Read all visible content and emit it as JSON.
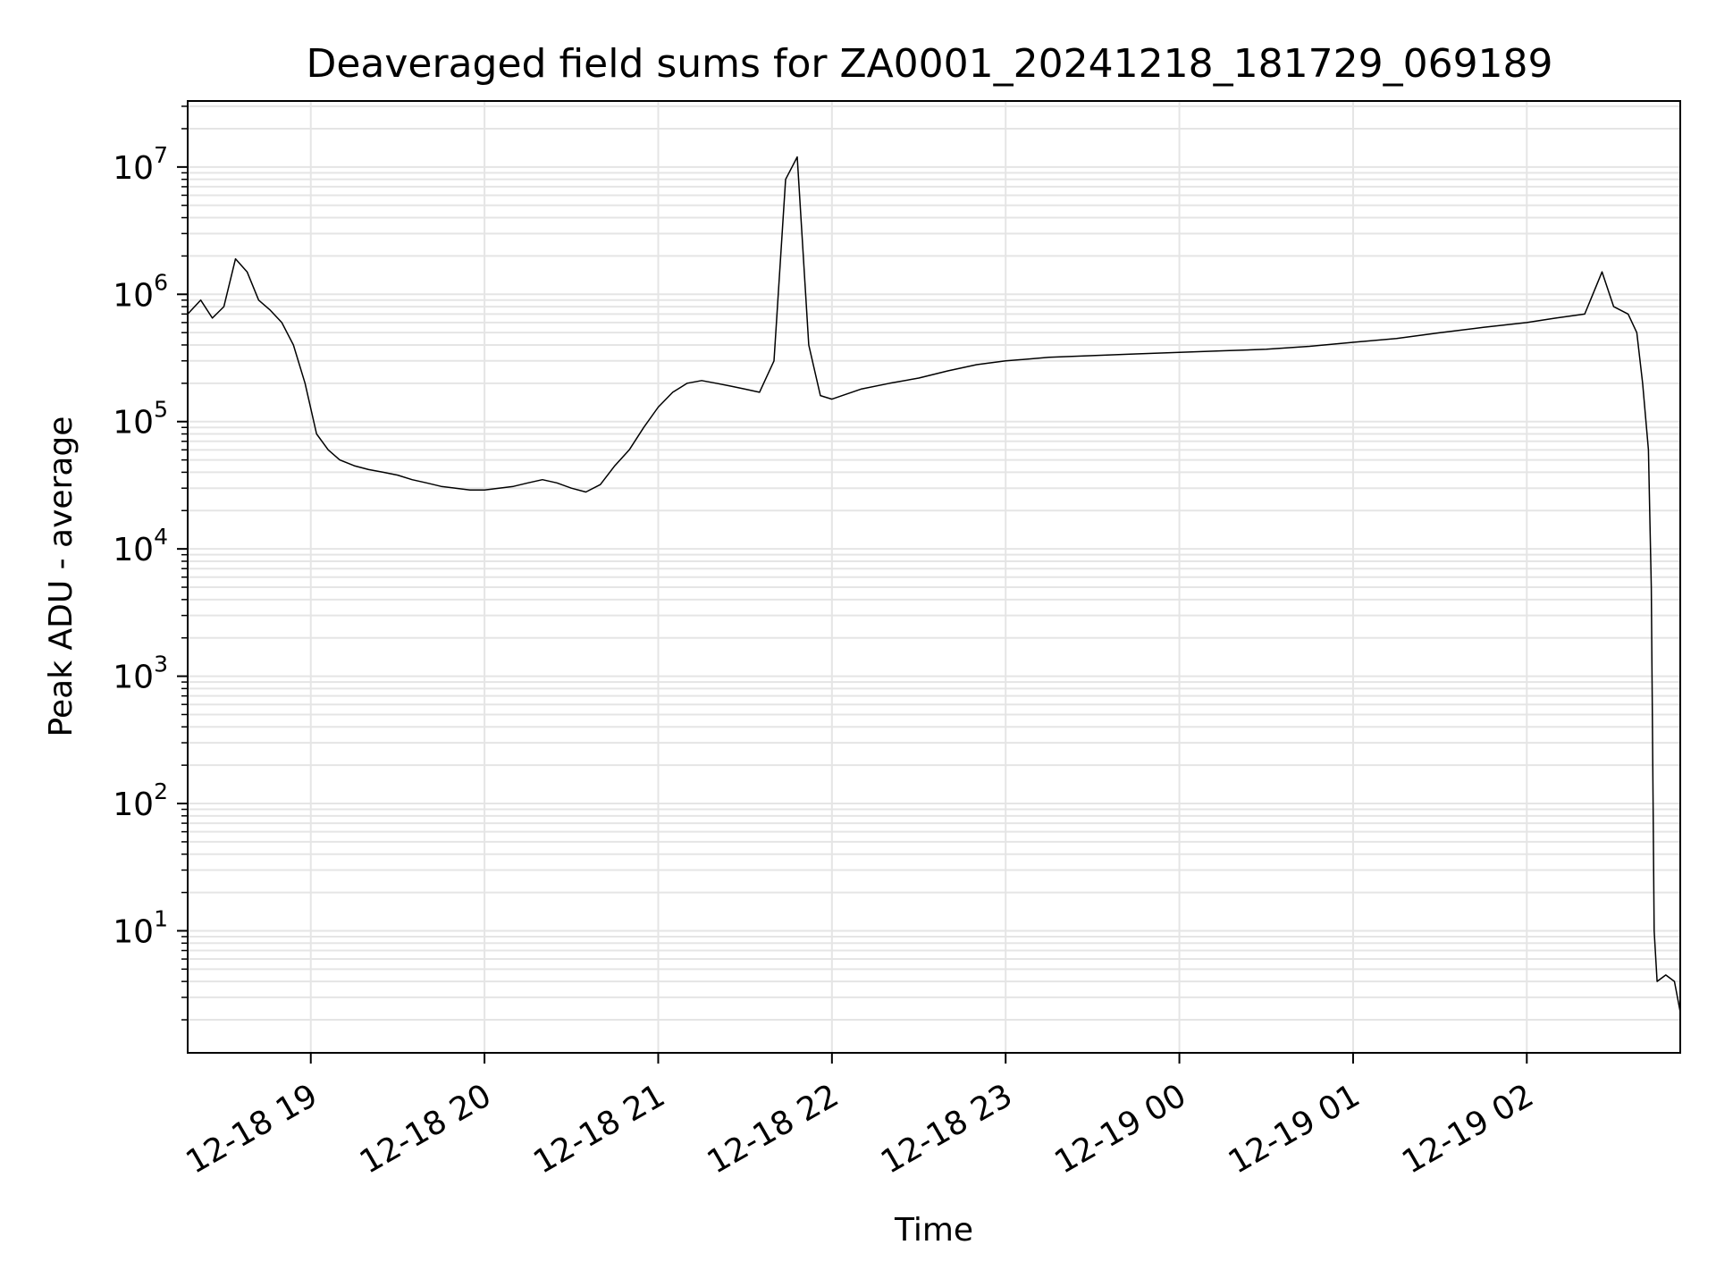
{
  "chart_data": {
    "type": "line",
    "title": "Deaveraged field sums for ZA0001_20241218_181729_069189",
    "xlabel": "Time",
    "ylabel": "Peak ADU - average",
    "yscale": "log",
    "grid": true,
    "line_color": "#000000",
    "grid_color": "#e5e5e5",
    "x_ticks": [
      {
        "label": "12-18 19",
        "t": "2024-12-18T19:00"
      },
      {
        "label": "12-18 20",
        "t": "2024-12-18T20:00"
      },
      {
        "label": "12-18 21",
        "t": "2024-12-18T21:00"
      },
      {
        "label": "12-18 22",
        "t": "2024-12-18T22:00"
      },
      {
        "label": "12-18 23",
        "t": "2024-12-18T23:00"
      },
      {
        "label": "12-19 00",
        "t": "2024-12-19T00:00"
      },
      {
        "label": "12-19 01",
        "t": "2024-12-19T01:00"
      },
      {
        "label": "12-19 02",
        "t": "2024-12-19T02:00"
      }
    ],
    "y_ticks": [
      {
        "base": "10",
        "exp": "1",
        "value": 10
      },
      {
        "base": "10",
        "exp": "2",
        "value": 100
      },
      {
        "base": "10",
        "exp": "3",
        "value": 1000
      },
      {
        "base": "10",
        "exp": "4",
        "value": 10000
      },
      {
        "base": "10",
        "exp": "5",
        "value": 100000
      },
      {
        "base": "10",
        "exp": "6",
        "value": 1000000
      },
      {
        "base": "10",
        "exp": "7",
        "value": 10000000
      }
    ],
    "xlim": [
      "2024-12-18T18:17:29",
      "2024-12-19T02:53:00"
    ],
    "ylim": [
      1.1,
      33000000
    ],
    "series": [
      {
        "points": [
          [
            "2024-12-18T18:17:29",
            700000
          ],
          [
            "2024-12-18T18:22:00",
            900000
          ],
          [
            "2024-12-18T18:26:00",
            650000
          ],
          [
            "2024-12-18T18:30:00",
            800000
          ],
          [
            "2024-12-18T18:34:00",
            1900000
          ],
          [
            "2024-12-18T18:38:00",
            1500000
          ],
          [
            "2024-12-18T18:42:00",
            900000
          ],
          [
            "2024-12-18T18:46:00",
            750000
          ],
          [
            "2024-12-18T18:50:00",
            600000
          ],
          [
            "2024-12-18T18:54:00",
            400000
          ],
          [
            "2024-12-18T18:58:00",
            200000
          ],
          [
            "2024-12-18T19:02:00",
            80000
          ],
          [
            "2024-12-18T19:06:00",
            60000
          ],
          [
            "2024-12-18T19:10:00",
            50000
          ],
          [
            "2024-12-18T19:15:00",
            45000
          ],
          [
            "2024-12-18T19:20:00",
            42000
          ],
          [
            "2024-12-18T19:25:00",
            40000
          ],
          [
            "2024-12-18T19:30:00",
            38000
          ],
          [
            "2024-12-18T19:35:00",
            35000
          ],
          [
            "2024-12-18T19:40:00",
            33000
          ],
          [
            "2024-12-18T19:45:00",
            31000
          ],
          [
            "2024-12-18T19:50:00",
            30000
          ],
          [
            "2024-12-18T19:55:00",
            29000
          ],
          [
            "2024-12-18T20:00:00",
            29000
          ],
          [
            "2024-12-18T20:05:00",
            30000
          ],
          [
            "2024-12-18T20:10:00",
            31000
          ],
          [
            "2024-12-18T20:15:00",
            33000
          ],
          [
            "2024-12-18T20:20:00",
            35000
          ],
          [
            "2024-12-18T20:25:00",
            33000
          ],
          [
            "2024-12-18T20:30:00",
            30000
          ],
          [
            "2024-12-18T20:35:00",
            28000
          ],
          [
            "2024-12-18T20:40:00",
            32000
          ],
          [
            "2024-12-18T20:45:00",
            45000
          ],
          [
            "2024-12-18T20:50:00",
            60000
          ],
          [
            "2024-12-18T20:55:00",
            90000
          ],
          [
            "2024-12-18T21:00:00",
            130000
          ],
          [
            "2024-12-18T21:05:00",
            170000
          ],
          [
            "2024-12-18T21:10:00",
            200000
          ],
          [
            "2024-12-18T21:15:00",
            210000
          ],
          [
            "2024-12-18T21:20:00",
            200000
          ],
          [
            "2024-12-18T21:25:00",
            190000
          ],
          [
            "2024-12-18T21:30:00",
            180000
          ],
          [
            "2024-12-18T21:35:00",
            170000
          ],
          [
            "2024-12-18T21:40:00",
            300000
          ],
          [
            "2024-12-18T21:44:00",
            8000000
          ],
          [
            "2024-12-18T21:48:00",
            12000000
          ],
          [
            "2024-12-18T21:52:00",
            400000
          ],
          [
            "2024-12-18T21:56:00",
            160000
          ],
          [
            "2024-12-18T22:00:00",
            150000
          ],
          [
            "2024-12-18T22:10:00",
            180000
          ],
          [
            "2024-12-18T22:20:00",
            200000
          ],
          [
            "2024-12-18T22:30:00",
            220000
          ],
          [
            "2024-12-18T22:40:00",
            250000
          ],
          [
            "2024-12-18T22:50:00",
            280000
          ],
          [
            "2024-12-18T23:00:00",
            300000
          ],
          [
            "2024-12-18T23:15:00",
            320000
          ],
          [
            "2024-12-18T23:30:00",
            330000
          ],
          [
            "2024-12-18T23:45:00",
            340000
          ],
          [
            "2024-12-19T00:00:00",
            350000
          ],
          [
            "2024-12-19T00:15:00",
            360000
          ],
          [
            "2024-12-19T00:30:00",
            370000
          ],
          [
            "2024-12-19T00:45:00",
            390000
          ],
          [
            "2024-12-19T01:00:00",
            420000
          ],
          [
            "2024-12-19T01:15:00",
            450000
          ],
          [
            "2024-12-19T01:30:00",
            500000
          ],
          [
            "2024-12-19T01:45:00",
            550000
          ],
          [
            "2024-12-19T02:00:00",
            600000
          ],
          [
            "2024-12-19T02:10:00",
            650000
          ],
          [
            "2024-12-19T02:20:00",
            700000
          ],
          [
            "2024-12-19T02:26:00",
            1500000
          ],
          [
            "2024-12-19T02:30:00",
            800000
          ],
          [
            "2024-12-19T02:35:00",
            700000
          ],
          [
            "2024-12-19T02:38:00",
            500000
          ],
          [
            "2024-12-19T02:40:00",
            200000
          ],
          [
            "2024-12-19T02:42:00",
            60000
          ],
          [
            "2024-12-19T02:43:00",
            5000
          ],
          [
            "2024-12-19T02:44:00",
            10
          ],
          [
            "2024-12-19T02:45:00",
            4
          ],
          [
            "2024-12-19T02:48:00",
            4.5
          ],
          [
            "2024-12-19T02:51:00",
            4
          ],
          [
            "2024-12-19T02:53:00",
            2.3
          ]
        ]
      }
    ]
  }
}
